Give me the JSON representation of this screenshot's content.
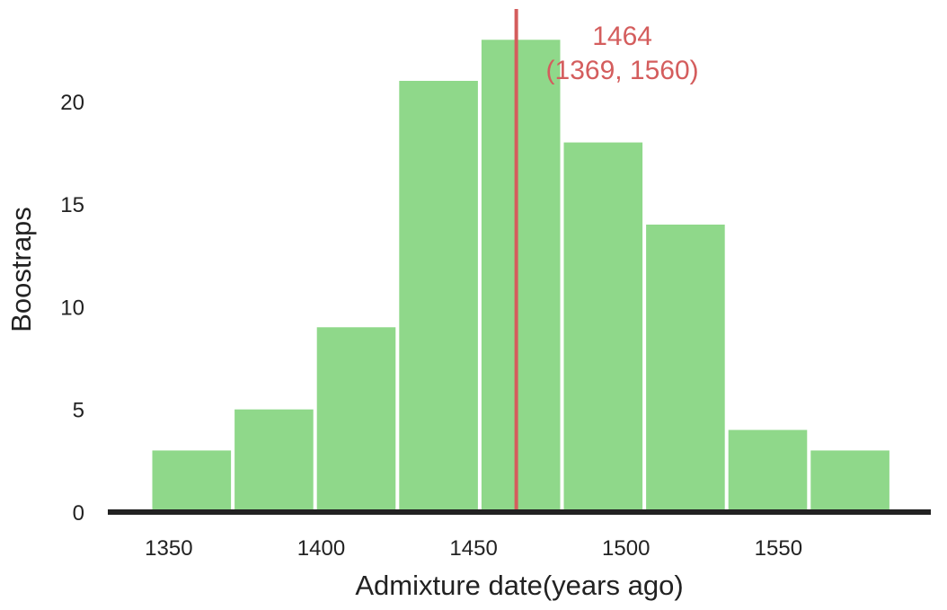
{
  "chart_data": {
    "type": "bar",
    "subtype": "histogram",
    "bins": [
      {
        "x0": 1344,
        "x1": 1371,
        "count": 3
      },
      {
        "x0": 1371,
        "x1": 1398,
        "count": 5
      },
      {
        "x0": 1398,
        "x1": 1425,
        "count": 9
      },
      {
        "x0": 1425,
        "x1": 1452,
        "count": 21
      },
      {
        "x0": 1452,
        "x1": 1479,
        "count": 23
      },
      {
        "x0": 1479,
        "x1": 1506,
        "count": 18
      },
      {
        "x0": 1506,
        "x1": 1533,
        "count": 14
      },
      {
        "x0": 1533,
        "x1": 1560,
        "count": 4
      },
      {
        "x0": 1560,
        "x1": 1587,
        "count": 3
      }
    ],
    "xlabel": "Admixture date(years ago)",
    "ylabel": "Boostraps",
    "xlim": [
      1330,
      1600
    ],
    "ylim": [
      0,
      24.5
    ],
    "xticks": [
      1350,
      1400,
      1450,
      1500,
      1550
    ],
    "yticks": [
      0,
      5,
      10,
      15,
      20
    ],
    "grid": false,
    "bar_color": "#8fd88a",
    "estimate": {
      "value": 1464,
      "value_label": "1464",
      "interval_label": "(1369, 1560)",
      "color": "#d45d5d"
    },
    "axis_color": "#222222"
  }
}
